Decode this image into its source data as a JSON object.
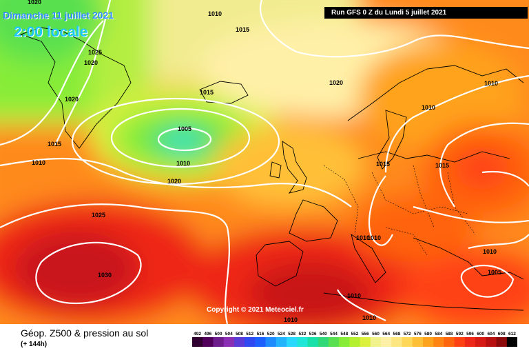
{
  "header": {
    "date": "Dimanche 11 juillet 2021",
    "local_time": "2:00 locale",
    "run": "Run GFS 0 Z du Lundi 5 juillet 2021"
  },
  "copyright": "Copyright © 2021 Meteociel.fr",
  "footer": {
    "title": "Géop. Z500 & pression au sol",
    "subtitle": "(+ 144h)"
  },
  "scale": {
    "ticks": [
      "492",
      "496",
      "500",
      "504",
      "508",
      "512",
      "516",
      "520",
      "524",
      "528",
      "532",
      "536",
      "540",
      "544",
      "548",
      "552",
      "556",
      "560",
      "564",
      "568",
      "572",
      "576",
      "580",
      "584",
      "588",
      "592",
      "596",
      "600",
      "604",
      "608",
      "612"
    ],
    "colors": [
      "#300030",
      "#50005a",
      "#6e1e8c",
      "#8a2fb3",
      "#5a3bd6",
      "#3048f0",
      "#1c60ff",
      "#1e8cff",
      "#24b4ff",
      "#2ad8ff",
      "#20e6d8",
      "#18e0a8",
      "#30d878",
      "#58e050",
      "#86ec38",
      "#b4f030",
      "#dcf040",
      "#f2f28c",
      "#fff0a8",
      "#ffe680",
      "#ffd85a",
      "#ffc038",
      "#ffa21e",
      "#ff8414",
      "#ff640e",
      "#ff4214",
      "#ee2818",
      "#d61a14",
      "#b81010",
      "#8c0a0a",
      "#000000"
    ]
  },
  "isobars": [
    "1020",
    "1010",
    "1015",
    "1025",
    "1020",
    "1020",
    "1015",
    "1015",
    "1005",
    "1010",
    "1010",
    "1020",
    "1020",
    "1025",
    "1030",
    "1010",
    "1015",
    "1015",
    "1010",
    "1010",
    "1010",
    "1010",
    "1005",
    "1010",
    "1010",
    "1010"
  ]
}
